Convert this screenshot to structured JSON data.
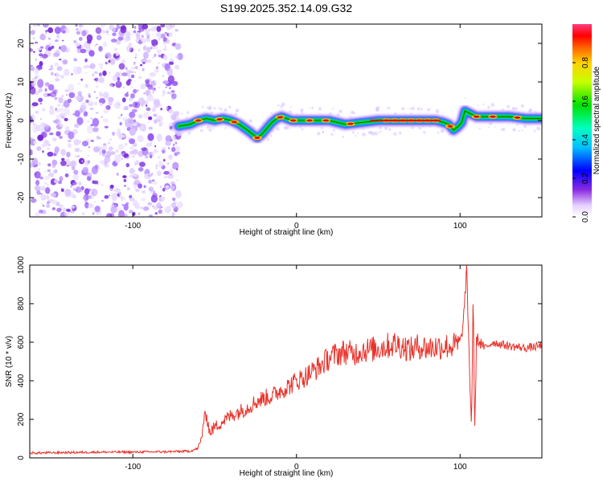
{
  "title": "S199.2025.352.14.09.G32",
  "colors": {
    "snr_line": "#e8332b",
    "speckle": "#7a2bd9",
    "axis": "#000000"
  },
  "chart_data": [
    {
      "type": "heatmap",
      "name": "spectrogram",
      "xlabel": "Height of straight line (km)",
      "ylabel": "Frequency (Hz)",
      "xlim": [
        -163,
        150
      ],
      "ylim": [
        -25,
        25
      ],
      "xticks": [
        -100,
        0,
        100
      ],
      "yticks": [
        20,
        10,
        0,
        -10,
        -20
      ],
      "noise_region_x": [
        -163,
        -71
      ],
      "signal_start_x": -72,
      "ridge": {
        "x": [
          -72,
          -65,
          -60,
          -55,
          -50,
          -45,
          -40,
          -35,
          -30,
          -27,
          -24,
          -21,
          -18,
          -15,
          -12,
          -9,
          -6,
          -3,
          0,
          10,
          20,
          30,
          40,
          50,
          60,
          70,
          80,
          85,
          90,
          93,
          96,
          99,
          101,
          103,
          106,
          110,
          120,
          130,
          140,
          150
        ],
        "y": [
          -1.5,
          -1.0,
          0,
          0.5,
          0,
          0.5,
          0,
          -1,
          -2.5,
          -3.5,
          -4.5,
          -3.5,
          -2,
          -0.5,
          0.5,
          1,
          0.5,
          0,
          0,
          0,
          0,
          -1,
          -0.5,
          0,
          0,
          0,
          0,
          0,
          -0.5,
          -1,
          -2.5,
          -1.5,
          -0.5,
          2.5,
          1.8,
          1,
          1,
          1,
          0.5,
          0.5
        ]
      },
      "colorbar": {
        "label": "Normalized spectral amplitude",
        "range": [
          0,
          1
        ],
        "ticks": [
          "0.0",
          "0.2",
          "0.4",
          "0.6",
          "0.8"
        ],
        "tick_values": [
          0,
          0.2,
          0.4,
          0.6,
          0.8
        ]
      }
    },
    {
      "type": "line",
      "name": "snr",
      "xlabel": "Height of straight line (km)",
      "ylabel": "SNR (10 * v/v)",
      "xlim": [
        -163,
        150
      ],
      "ylim": [
        0,
        1000
      ],
      "xticks": [
        -100,
        0,
        100
      ],
      "yticks": [
        0,
        200,
        400,
        600,
        800,
        1000
      ],
      "series": [
        {
          "name": "SNR",
          "x": [
            -163,
            -140,
            -120,
            -100,
            -80,
            -65,
            -60,
            -58,
            -57,
            -55,
            -53,
            -50,
            -45,
            -40,
            -35,
            -30,
            -25,
            -20,
            -15,
            -10,
            -5,
            0,
            5,
            10,
            15,
            20,
            25,
            30,
            35,
            40,
            45,
            50,
            55,
            60,
            65,
            70,
            75,
            80,
            85,
            90,
            95,
            100,
            102,
            104,
            106,
            107,
            108,
            109,
            110,
            112,
            115,
            120,
            130,
            140,
            150
          ],
          "y": [
            25,
            28,
            30,
            30,
            32,
            35,
            50,
            100,
            180,
            230,
            130,
            160,
            190,
            220,
            240,
            260,
            290,
            310,
            320,
            350,
            370,
            400,
            420,
            450,
            480,
            520,
            540,
            550,
            540,
            560,
            560,
            570,
            580,
            590,
            580,
            560,
            580,
            570,
            575,
            580,
            580,
            590,
            700,
            980,
            400,
            150,
            870,
            100,
            620,
            600,
            570,
            600,
            580,
            570,
            580
          ]
        }
      ]
    }
  ]
}
